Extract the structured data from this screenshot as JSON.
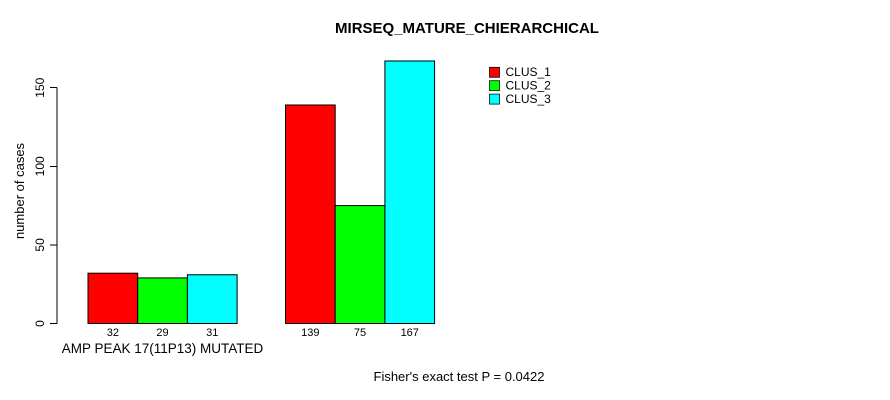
{
  "chart_data": {
    "type": "bar",
    "title": "MIRSEQ_MATURE_CHIERARCHICAL",
    "ylabel": "number of cases",
    "xlabel": "",
    "categories": [
      "AMP PEAK 17(11P13) MUTATED",
      ""
    ],
    "series": [
      {
        "name": "CLUS_1",
        "color": "#ff0000",
        "values": [
          32,
          139
        ]
      },
      {
        "name": "CLUS_2",
        "color": "#00ff00",
        "values": [
          29,
          75
        ]
      },
      {
        "name": "CLUS_3",
        "color": "#00ffff",
        "values": [
          31,
          167
        ]
      }
    ],
    "yticks": [
      0,
      50,
      100,
      150
    ],
    "ylim": [
      0,
      170
    ],
    "grid": false,
    "legend_position": "top-right-inside",
    "bar_labels_shown": true,
    "annotation": "Fisher's exact test P = 0.0422"
  },
  "colors": {
    "background": "#ffffff",
    "axis": "#000000",
    "bar_border": "#000000",
    "text": "#000000"
  }
}
